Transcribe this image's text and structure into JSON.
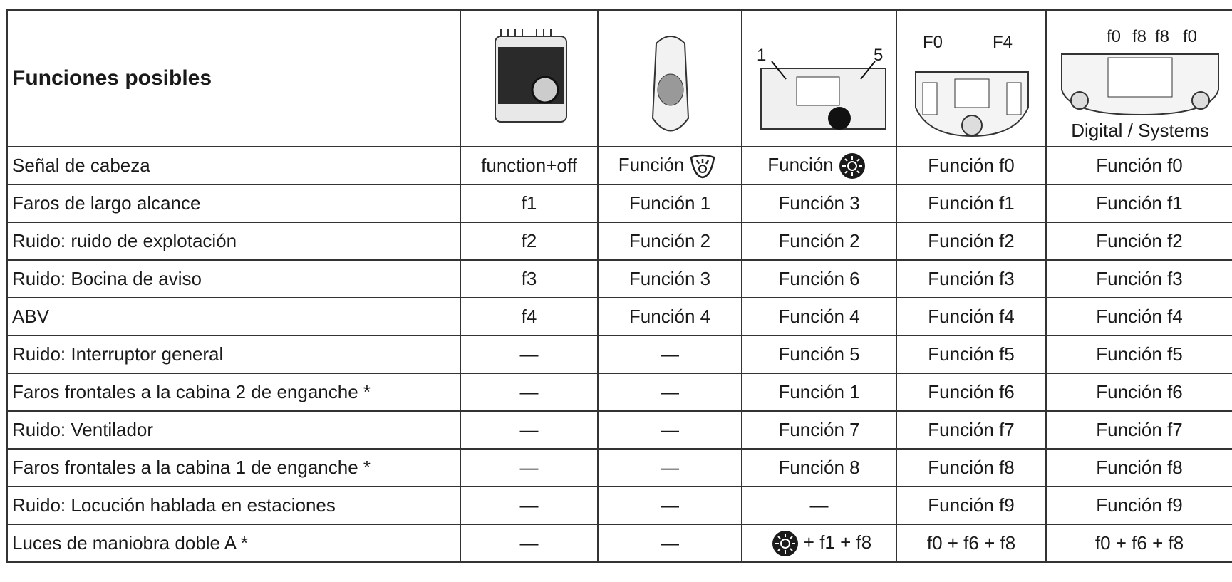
{
  "table": {
    "header": {
      "title": "Funciones posibles",
      "device_3_labels": [
        "1",
        "5"
      ],
      "device_4_labels": [
        "F0",
        "F4"
      ],
      "device_5_labels": [
        "f0",
        "f8",
        "f8",
        "f0"
      ],
      "device_5_caption": "Digital / Systems"
    },
    "rows": [
      [
        "Señal de cabeza",
        "function+off",
        "Función",
        "Función",
        "Función f0",
        "Función f0"
      ],
      [
        "Faros de largo alcance",
        "f1",
        "Función 1",
        "Función 3",
        "Función f1",
        "Función f1"
      ],
      [
        "Ruido: ruido de explotación",
        "f2",
        "Función 2",
        "Función 2",
        "Función f2",
        "Función f2"
      ],
      [
        "Ruido: Bocina de aviso",
        "f3",
        "Función 3",
        "Función 6",
        "Función f3",
        "Función f3"
      ],
      [
        "ABV",
        "f4",
        "Función 4",
        "Función 4",
        "Función f4",
        "Función f4"
      ],
      [
        "Ruido: Interruptor general",
        "—",
        "—",
        "Función 5",
        "Función f5",
        "Función f5"
      ],
      [
        "Faros frontales a la cabina 2 de enganche *",
        "—",
        "—",
        "Función 1",
        "Función f6",
        "Función f6"
      ],
      [
        "Ruido: Ventilador",
        "—",
        "—",
        "Función 7",
        "Función f7",
        "Función f7"
      ],
      [
        "Faros frontales a la cabina 1 de enganche *",
        "—",
        "—",
        "Función 8",
        "Función f8",
        "Función f8"
      ],
      [
        "Ruido: Locución hablada en estaciones",
        "—",
        "—",
        "—",
        "Función f9",
        "Función f9"
      ],
      [
        "Luces de maniobra doble A *",
        "—",
        "—",
        "+ f1 + f8",
        "f0 + f6 + f8",
        "f0 + f6 + f8"
      ]
    ]
  }
}
